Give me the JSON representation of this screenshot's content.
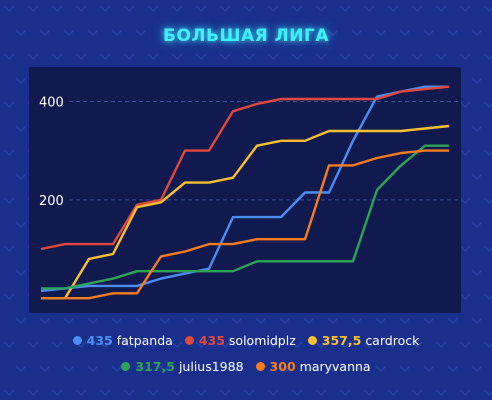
{
  "header": {
    "title": "БОЛЬШАЯ ЛИГА"
  },
  "colors": {
    "background": "#1a2f8c",
    "plot_bg": "#101a4f",
    "title": "#3ff0ff"
  },
  "legend": [
    {
      "score": "435",
      "name": "fatpanda",
      "color": "#4b8df5"
    },
    {
      "score": "435",
      "name": "solomidplz",
      "color": "#e0483c"
    },
    {
      "score": "357,5",
      "name": "cardrock",
      "color": "#fbc02d"
    },
    {
      "score": "317,5",
      "name": "julius1988",
      "color": "#2ea357"
    },
    {
      "score": "300",
      "name": "maryvanna",
      "color": "#f57c1f"
    }
  ],
  "chart_data": {
    "type": "line",
    "x": [
      0,
      1,
      2,
      3,
      4,
      5,
      6,
      7,
      8,
      9,
      10,
      11,
      12,
      13,
      14,
      15,
      16,
      17
    ],
    "ylim": [
      -30,
      470
    ],
    "yticks": [
      "200",
      "400"
    ],
    "series": [
      {
        "name": "fatpanda",
        "color": "#4b8df5",
        "values": [
          15,
          20,
          25,
          25,
          25,
          40,
          50,
          60,
          165,
          165,
          165,
          215,
          215,
          320,
          410,
          420,
          430,
          430
        ]
      },
      {
        "name": "solomidplz",
        "color": "#e0483c",
        "values": [
          100,
          110,
          110,
          110,
          190,
          200,
          300,
          300,
          380,
          395,
          405,
          405,
          405,
          405,
          405,
          420,
          425,
          430
        ]
      },
      {
        "name": "cardrock",
        "color": "#fbc02d",
        "values": [
          0,
          0,
          80,
          90,
          185,
          195,
          235,
          235,
          245,
          310,
          320,
          320,
          340,
          340,
          340,
          340,
          345,
          350
        ]
      },
      {
        "name": "julius1988",
        "color": "#2ea357",
        "values": [
          20,
          20,
          30,
          40,
          55,
          55,
          55,
          55,
          55,
          75,
          75,
          75,
          75,
          75,
          220,
          270,
          310,
          310
        ]
      },
      {
        "name": "maryvanna",
        "color": "#f57c1f",
        "values": [
          0,
          0,
          0,
          10,
          10,
          85,
          95,
          110,
          110,
          120,
          120,
          120,
          270,
          270,
          285,
          295,
          300,
          300
        ]
      }
    ]
  }
}
